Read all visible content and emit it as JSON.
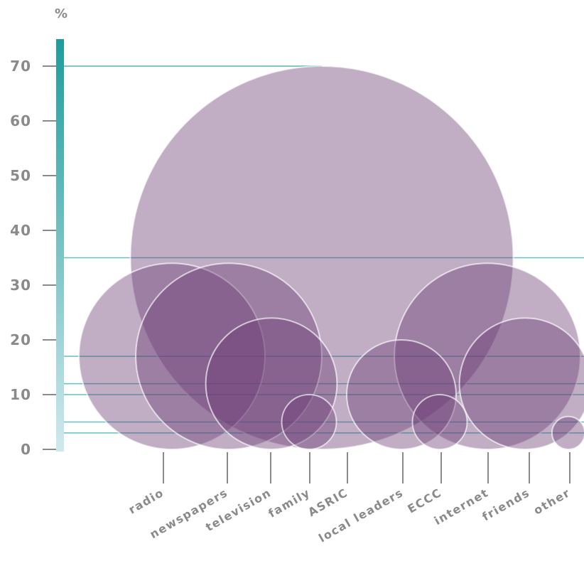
{
  "chart_data": {
    "type": "bubble",
    "title": "",
    "xlabel": "",
    "ylabel": "%",
    "ylim": [
      0,
      70
    ],
    "yticks": [
      0,
      10,
      20,
      30,
      40,
      50,
      60,
      70
    ],
    "categories": [
      "radio",
      "newspapers",
      "television",
      "family",
      "ASRIC",
      "local leaders",
      "ECCC",
      "internet",
      "friends",
      "other"
    ],
    "values": [
      34,
      34,
      24,
      10,
      70,
      20,
      10,
      34,
      24,
      6
    ],
    "colors": {
      "bubble": "#6b3e75",
      "axis_top": "#1e9c9c",
      "axis_bottom": "#cfe9ee",
      "guide": "#2aa3a3",
      "tick": "#8a8a8a",
      "text": "#8a8a8a"
    }
  }
}
